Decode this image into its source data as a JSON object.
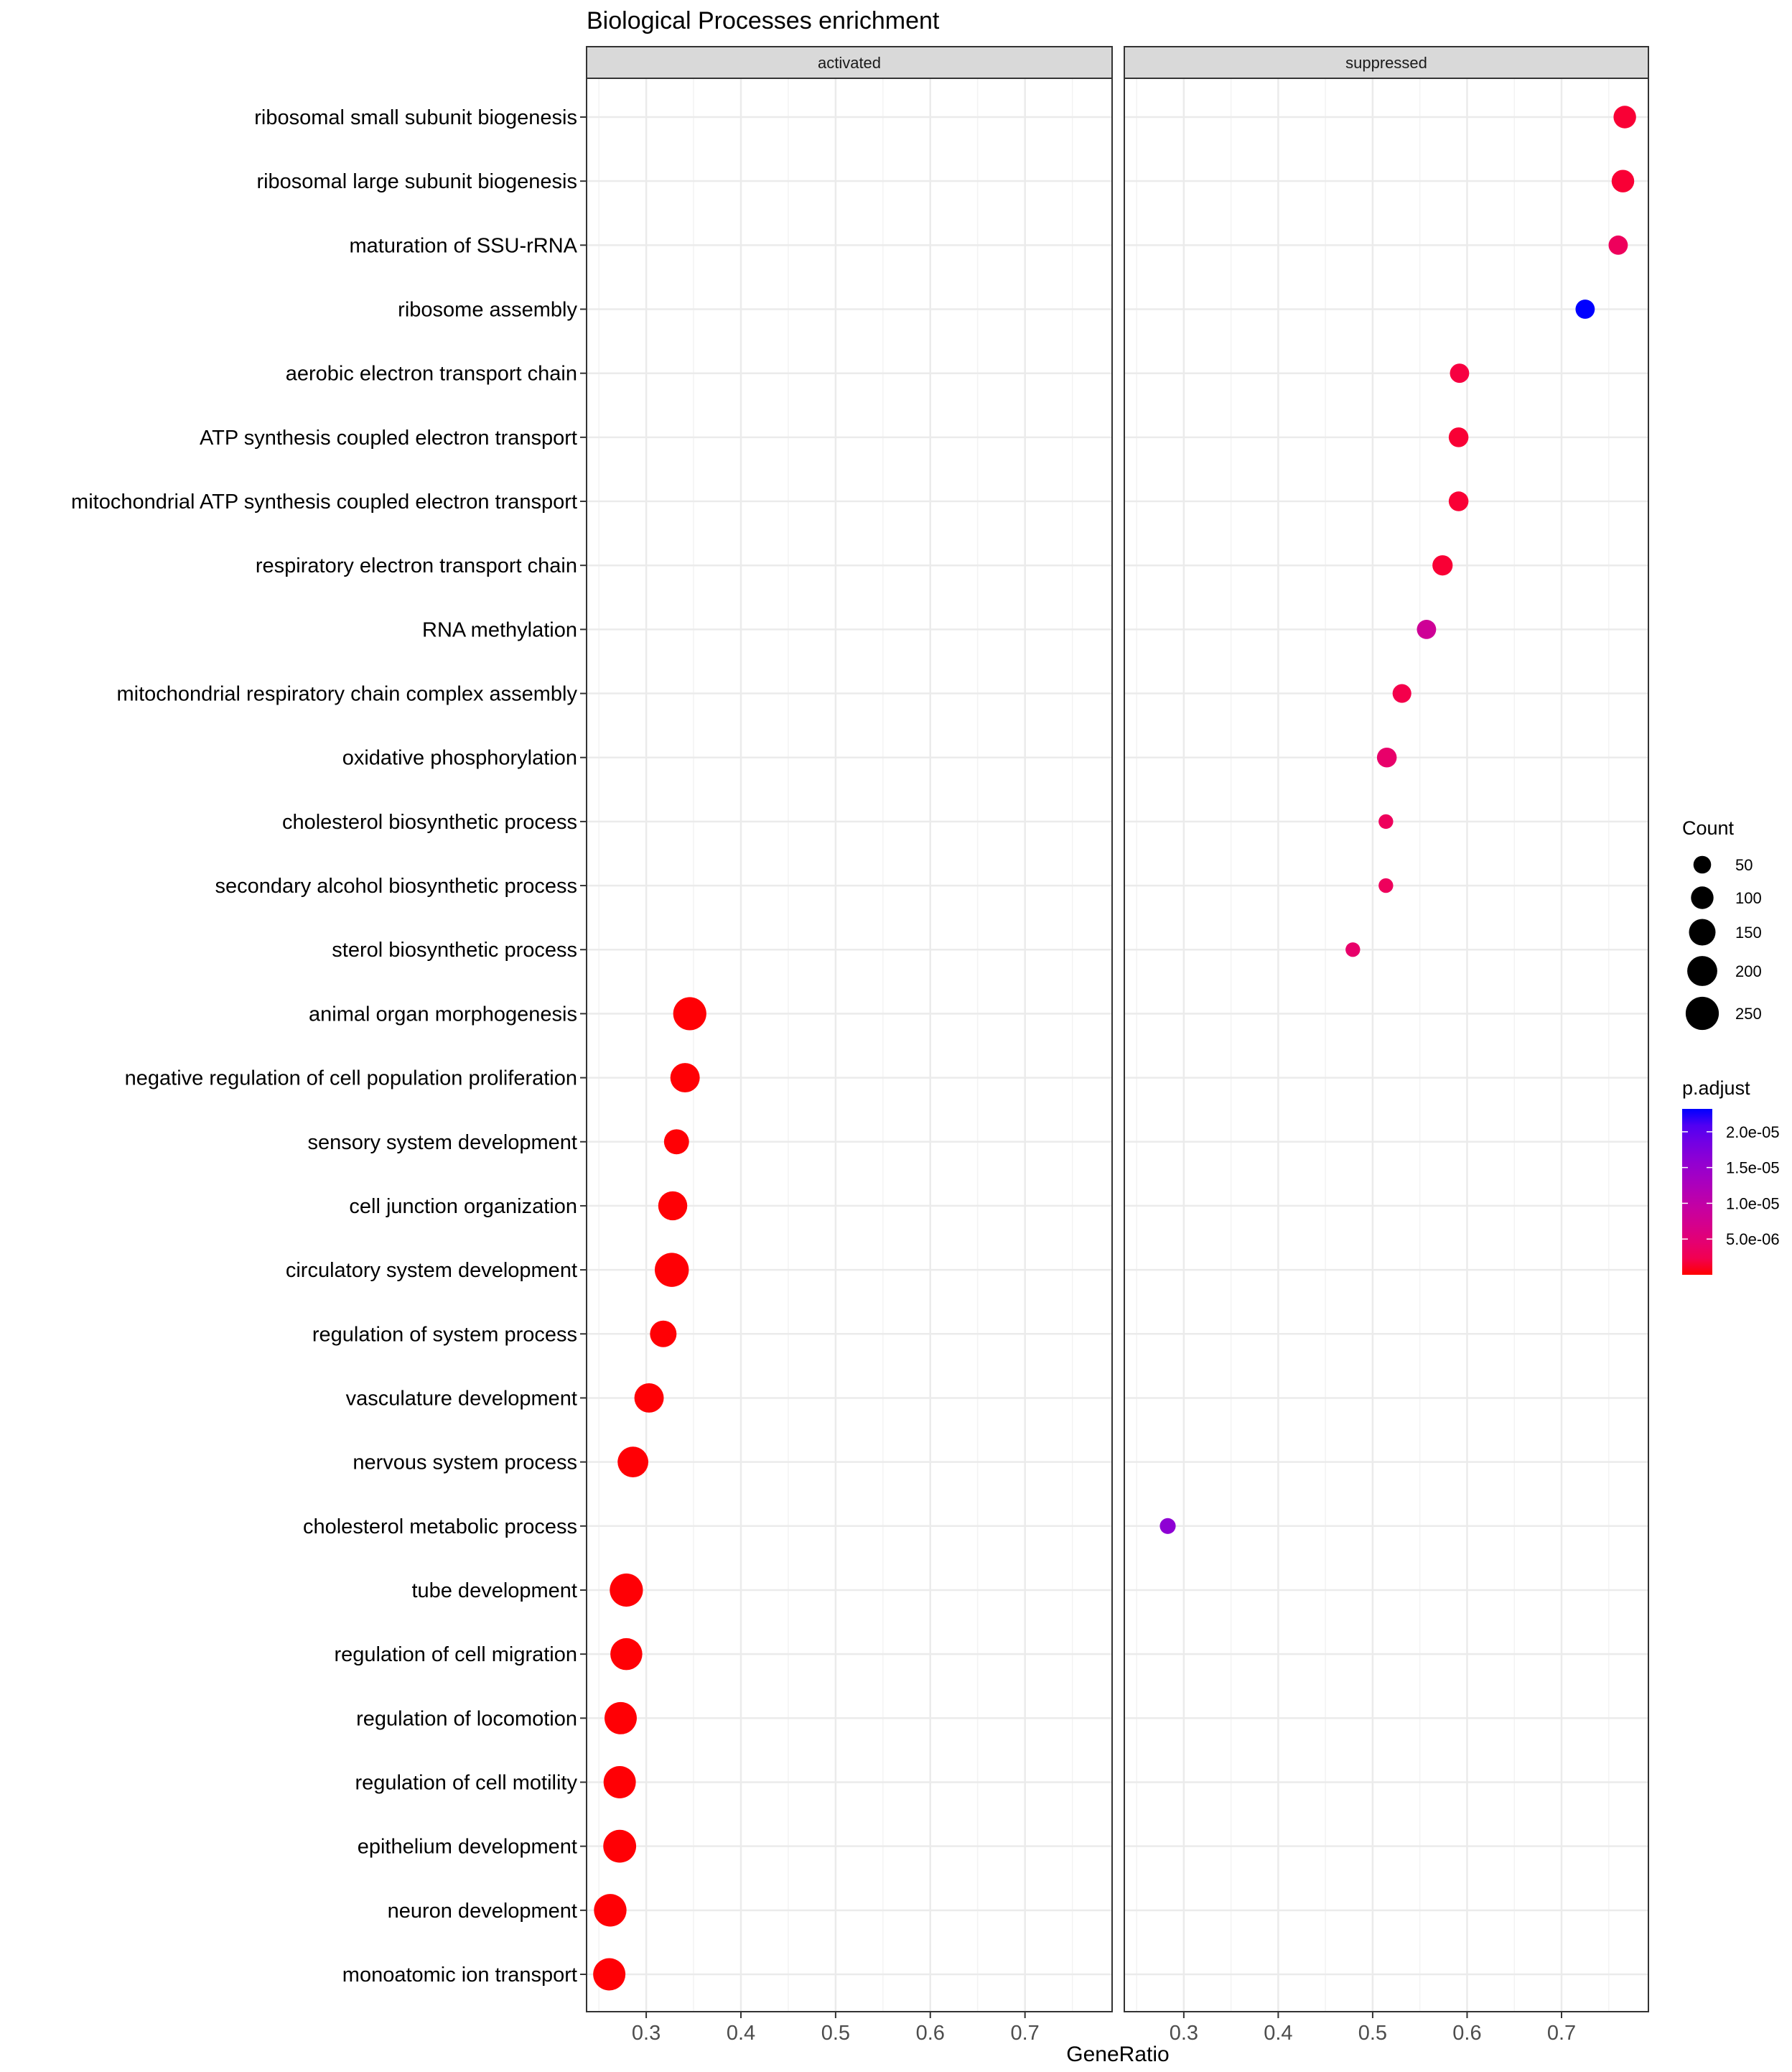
{
  "chart_data": {
    "type": "scatter",
    "title": "Biological Processes enrichment",
    "xlabel": "GeneRatio",
    "ylabel": "",
    "xlim": [
      0.237,
      0.792
    ],
    "xticks": [
      0.3,
      0.4,
      0.5,
      0.6,
      0.7
    ],
    "xtick_labels": [
      "0.3",
      "0.4",
      "0.5",
      "0.6",
      "0.7"
    ],
    "grid": true,
    "facets": [
      "activated",
      "suppressed"
    ],
    "categories": [
      "ribosomal small subunit biogenesis",
      "ribosomal large subunit biogenesis",
      "maturation of SSU-rRNA",
      "ribosome assembly",
      "aerobic electron transport chain",
      "ATP synthesis coupled electron transport",
      "mitochondrial ATP synthesis coupled electron transport",
      "respiratory electron transport chain",
      "RNA methylation",
      "mitochondrial respiratory chain complex assembly",
      "oxidative phosphorylation",
      "cholesterol biosynthetic process",
      "secondary alcohol biosynthetic process",
      "sterol biosynthetic process",
      "animal organ morphogenesis",
      "negative regulation of cell population proliferation",
      "sensory system development",
      "cell junction organization",
      "circulatory system development",
      "regulation of system process",
      "vasculature development",
      "nervous system process",
      "cholesterol metabolic process",
      "tube development",
      "regulation of cell migration",
      "regulation of locomotion",
      "regulation of cell motility",
      "epithelium development",
      "neuron development",
      "monoatomic ion transport"
    ],
    "points": [
      {
        "term": "ribosomal small subunit biogenesis",
        "facet": "suppressed",
        "GeneRatio": 0.767,
        "Count": 100,
        "p_adjust": 1e-06
      },
      {
        "term": "ribosomal large subunit biogenesis",
        "facet": "suppressed",
        "GeneRatio": 0.765,
        "Count": 100,
        "p_adjust": 1e-06
      },
      {
        "term": "maturation of SSU-rRNA",
        "facet": "suppressed",
        "GeneRatio": 0.76,
        "Count": 65,
        "p_adjust": 3e-06
      },
      {
        "term": "ribosome assembly",
        "facet": "suppressed",
        "GeneRatio": 0.725,
        "Count": 65,
        "p_adjust": 2.32e-05
      },
      {
        "term": "aerobic electron transport chain",
        "facet": "suppressed",
        "GeneRatio": 0.592,
        "Count": 65,
        "p_adjust": 1.5e-06
      },
      {
        "term": "ATP synthesis coupled electron transport",
        "facet": "suppressed",
        "GeneRatio": 0.591,
        "Count": 70,
        "p_adjust": 1e-06
      },
      {
        "term": "mitochondrial ATP synthesis coupled electron transport",
        "facet": "suppressed",
        "GeneRatio": 0.591,
        "Count": 70,
        "p_adjust": 1e-06
      },
      {
        "term": "respiratory electron transport chain",
        "facet": "suppressed",
        "GeneRatio": 0.574,
        "Count": 75,
        "p_adjust": 1e-06
      },
      {
        "term": "RNA methylation",
        "facet": "suppressed",
        "GeneRatio": 0.557,
        "Count": 65,
        "p_adjust": 8e-06
      },
      {
        "term": "mitochondrial respiratory chain complex assembly",
        "facet": "suppressed",
        "GeneRatio": 0.531,
        "Count": 60,
        "p_adjust": 2e-06
      },
      {
        "term": "oxidative phosphorylation",
        "facet": "suppressed",
        "GeneRatio": 0.515,
        "Count": 70,
        "p_adjust": 4e-06
      },
      {
        "term": "cholesterol biosynthetic process",
        "facet": "suppressed",
        "GeneRatio": 0.514,
        "Count": 25,
        "p_adjust": 3e-06
      },
      {
        "term": "secondary alcohol biosynthetic process",
        "facet": "suppressed",
        "GeneRatio": 0.514,
        "Count": 25,
        "p_adjust": 3e-06
      },
      {
        "term": "sterol biosynthetic process",
        "facet": "suppressed",
        "GeneRatio": 0.479,
        "Count": 25,
        "p_adjust": 4e-06
      },
      {
        "term": "animal organ morphogenesis",
        "facet": "activated",
        "GeneRatio": 0.346,
        "Count": 250,
        "p_adjust": 1e-08
      },
      {
        "term": "negative regulation of cell population proliferation",
        "facet": "activated",
        "GeneRatio": 0.341,
        "Count": 190,
        "p_adjust": 1e-08
      },
      {
        "term": "sensory system development",
        "facet": "activated",
        "GeneRatio": 0.332,
        "Count": 130,
        "p_adjust": 1e-08
      },
      {
        "term": "cell junction organization",
        "facet": "activated",
        "GeneRatio": 0.328,
        "Count": 185,
        "p_adjust": 1e-08
      },
      {
        "term": "circulatory system development",
        "facet": "activated",
        "GeneRatio": 0.327,
        "Count": 265,
        "p_adjust": 1e-08
      },
      {
        "term": "regulation of system process",
        "facet": "activated",
        "GeneRatio": 0.318,
        "Count": 150,
        "p_adjust": 1e-08
      },
      {
        "term": "vasculature development",
        "facet": "activated",
        "GeneRatio": 0.303,
        "Count": 190,
        "p_adjust": 1e-08
      },
      {
        "term": "nervous system process",
        "facet": "activated",
        "GeneRatio": 0.286,
        "Count": 210,
        "p_adjust": 1e-08
      },
      {
        "term": "cholesterol metabolic process",
        "facet": "suppressed",
        "GeneRatio": 0.283,
        "Count": 35,
        "p_adjust": 1.6e-05
      },
      {
        "term": "tube development",
        "facet": "activated",
        "GeneRatio": 0.279,
        "Count": 250,
        "p_adjust": 1e-08
      },
      {
        "term": "regulation of cell migration",
        "facet": "activated",
        "GeneRatio": 0.279,
        "Count": 230,
        "p_adjust": 1e-08
      },
      {
        "term": "regulation of locomotion",
        "facet": "activated",
        "GeneRatio": 0.273,
        "Count": 235,
        "p_adjust": 1e-08
      },
      {
        "term": "regulation of cell motility",
        "facet": "activated",
        "GeneRatio": 0.272,
        "Count": 235,
        "p_adjust": 1e-08
      },
      {
        "term": "epithelium development",
        "facet": "activated",
        "GeneRatio": 0.272,
        "Count": 245,
        "p_adjust": 1e-08
      },
      {
        "term": "neuron development",
        "facet": "activated",
        "GeneRatio": 0.262,
        "Count": 240,
        "p_adjust": 1e-08
      },
      {
        "term": "monoatomic ion transport",
        "facet": "activated",
        "GeneRatio": 0.261,
        "Count": 235,
        "p_adjust": 1e-08
      }
    ],
    "legend": {
      "placement": "right",
      "size": {
        "title": "Count",
        "breaks": [
          50,
          100,
          150,
          200,
          250
        ],
        "labels": [
          "50",
          "100",
          "150",
          "200",
          "250"
        ]
      },
      "color": {
        "title": "p.adjust",
        "range": [
          0,
          2.32e-05
        ],
        "breaks": [
          5e-06,
          1e-05,
          1.5e-05,
          2e-05
        ],
        "labels": [
          "5.0e-06",
          "1.0e-05",
          "1.5e-05",
          "2.0e-05"
        ],
        "low_color": "#FF0000",
        "high_color": "#0000FF"
      }
    }
  }
}
